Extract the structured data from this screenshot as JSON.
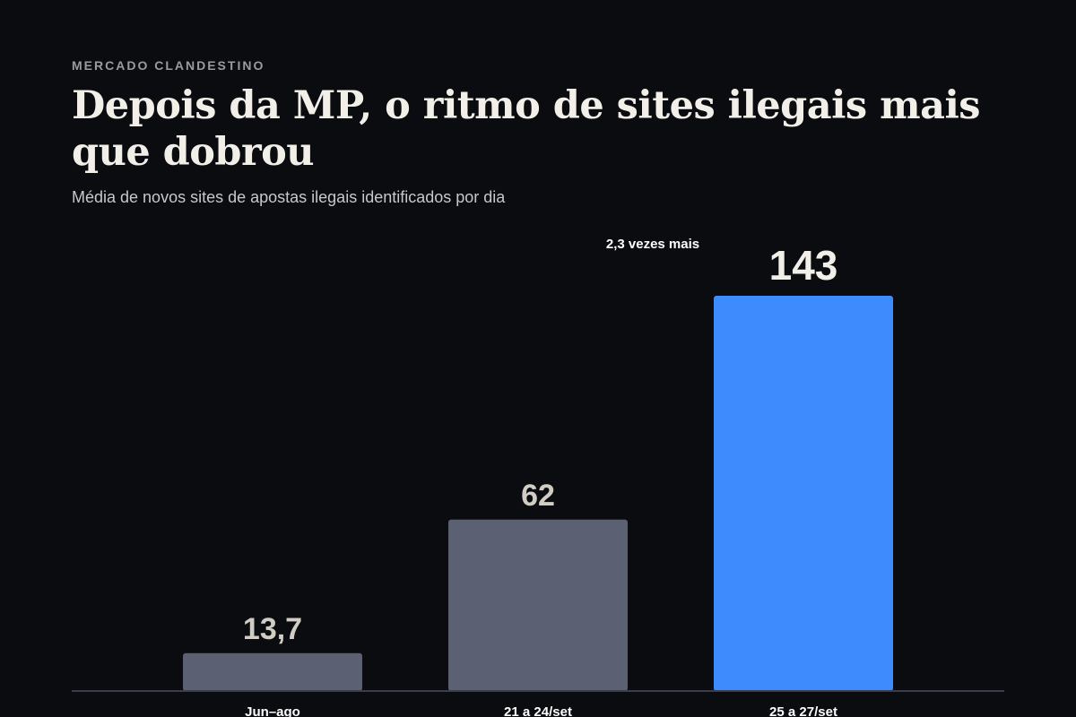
{
  "header": {
    "kicker": "MERCADO CLANDESTINO",
    "title": "Depois da MP, o ritmo de sites ilegais mais que dobrou",
    "subtitle": "Média de novos sites de apostas ilegais identificados por dia"
  },
  "chart_data": {
    "type": "bar",
    "title": "Depois da MP, o ritmo de sites ilegais mais que dobrou",
    "subtitle": "Média de novos sites de apostas ilegais identificados por dia",
    "categories": [
      "Jun–ago",
      "21 a 24/set",
      "25 a 27/set"
    ],
    "values": [
      13.7,
      62,
      143
    ],
    "value_labels": [
      "13,7",
      "62",
      "143"
    ],
    "ylim": [
      0,
      143
    ],
    "grid": false,
    "legend": "none",
    "annotation": "2,3 vezes mais",
    "colors": {
      "background": "#0b0c10",
      "bar_muted": "#5b6072",
      "bar_highlight": "#3d8bfd",
      "label_muted": "#d2cdc4",
      "label_highlight": "#f2efe9",
      "category_text": "#ffffff",
      "baseline": "#3a3d4a"
    },
    "highlight_index": 2
  }
}
